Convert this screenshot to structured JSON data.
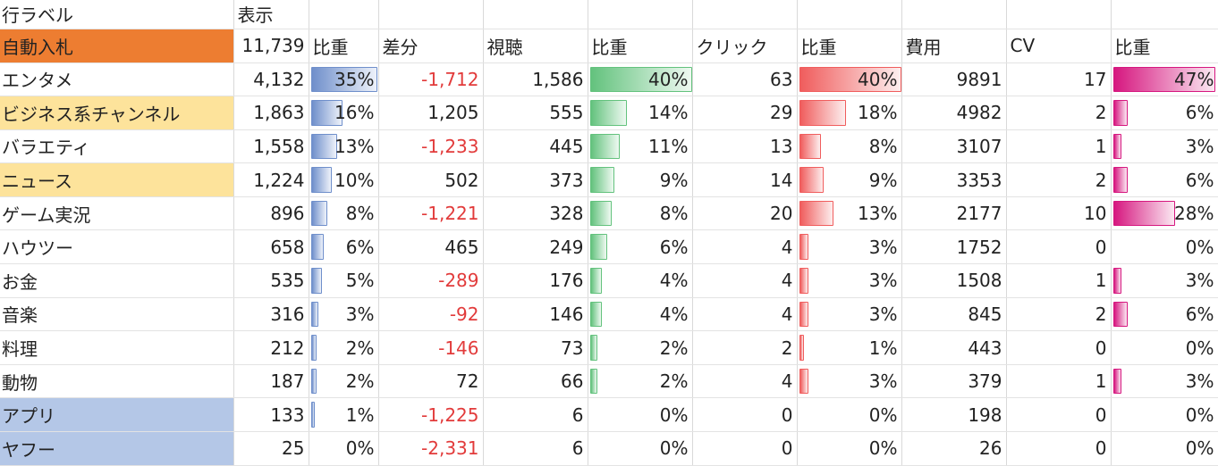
{
  "header": {
    "row_label": "行ラベル",
    "display": "表示"
  },
  "subheader": {
    "group": "自動入札",
    "total": "11,739",
    "col_ratio1": "比重",
    "col_diff": "差分",
    "col_view": "視聴",
    "col_ratio2": "比重",
    "col_click": "クリック",
    "col_ratio3": "比重",
    "col_cost": "費用",
    "col_cv": "CV",
    "col_ratio4": "比重"
  },
  "colors": {
    "group_row_bg": "#ed7d31",
    "highlight_yellow": "#fde39b",
    "highlight_blue": "#b4c7e7"
  },
  "rows": [
    {
      "label": "エンタメ",
      "hl": "",
      "v1": "4,132",
      "r1": "35%",
      "r1v": 0.35,
      "diff": "-1,712",
      "neg": true,
      "view": "1,586",
      "r2": "40%",
      "r2v": 0.4,
      "click": "63",
      "r3": "40%",
      "r3v": 0.4,
      "cost": "9891",
      "cv": "17",
      "r4": "47%",
      "r4v": 0.47
    },
    {
      "label": "ビジネス系チャンネル",
      "hl": "yellow",
      "v1": "1,863",
      "r1": "16%",
      "r1v": 0.16,
      "diff": "1,205",
      "neg": false,
      "view": "555",
      "r2": "14%",
      "r2v": 0.14,
      "click": "29",
      "r3": "18%",
      "r3v": 0.18,
      "cost": "4982",
      "cv": "2",
      "r4": "6%",
      "r4v": 0.06
    },
    {
      "label": "バラエティ",
      "hl": "",
      "v1": "1,558",
      "r1": "13%",
      "r1v": 0.13,
      "diff": "-1,233",
      "neg": true,
      "view": "445",
      "r2": "11%",
      "r2v": 0.11,
      "click": "13",
      "r3": "8%",
      "r3v": 0.08,
      "cost": "3107",
      "cv": "1",
      "r4": "3%",
      "r4v": 0.03
    },
    {
      "label": "ニュース",
      "hl": "yellow",
      "v1": "1,224",
      "r1": "10%",
      "r1v": 0.1,
      "diff": "502",
      "neg": false,
      "view": "373",
      "r2": "9%",
      "r2v": 0.09,
      "click": "14",
      "r3": "9%",
      "r3v": 0.09,
      "cost": "3353",
      "cv": "2",
      "r4": "6%",
      "r4v": 0.06
    },
    {
      "label": "ゲーム実況",
      "hl": "",
      "v1": "896",
      "r1": "8%",
      "r1v": 0.08,
      "diff": "-1,221",
      "neg": true,
      "view": "328",
      "r2": "8%",
      "r2v": 0.08,
      "click": "20",
      "r3": "13%",
      "r3v": 0.13,
      "cost": "2177",
      "cv": "10",
      "r4": "28%",
      "r4v": 0.28
    },
    {
      "label": "ハウツー",
      "hl": "",
      "v1": "658",
      "r1": "6%",
      "r1v": 0.06,
      "diff": "465",
      "neg": false,
      "view": "249",
      "r2": "6%",
      "r2v": 0.06,
      "click": "4",
      "r3": "3%",
      "r3v": 0.03,
      "cost": "1752",
      "cv": "0",
      "r4": "0%",
      "r4v": 0
    },
    {
      "label": "お金",
      "hl": "",
      "v1": "535",
      "r1": "5%",
      "r1v": 0.05,
      "diff": "-289",
      "neg": true,
      "view": "176",
      "r2": "4%",
      "r2v": 0.04,
      "click": "4",
      "r3": "3%",
      "r3v": 0.03,
      "cost": "1508",
      "cv": "1",
      "r4": "3%",
      "r4v": 0.03
    },
    {
      "label": "音楽",
      "hl": "",
      "v1": "316",
      "r1": "3%",
      "r1v": 0.03,
      "diff": "-92",
      "neg": true,
      "view": "146",
      "r2": "4%",
      "r2v": 0.04,
      "click": "4",
      "r3": "3%",
      "r3v": 0.03,
      "cost": "845",
      "cv": "2",
      "r4": "6%",
      "r4v": 0.06
    },
    {
      "label": "料理",
      "hl": "",
      "v1": "212",
      "r1": "2%",
      "r1v": 0.02,
      "diff": "-146",
      "neg": true,
      "view": "73",
      "r2": "2%",
      "r2v": 0.02,
      "click": "2",
      "r3": "1%",
      "r3v": 0.01,
      "cost": "443",
      "cv": "0",
      "r4": "0%",
      "r4v": 0
    },
    {
      "label": "動物",
      "hl": "",
      "v1": "187",
      "r1": "2%",
      "r1v": 0.02,
      "diff": "72",
      "neg": false,
      "view": "66",
      "r2": "2%",
      "r2v": 0.02,
      "click": "4",
      "r3": "3%",
      "r3v": 0.03,
      "cost": "379",
      "cv": "1",
      "r4": "3%",
      "r4v": 0.03
    },
    {
      "label": "アプリ",
      "hl": "blue",
      "v1": "133",
      "r1": "1%",
      "r1v": 0.01,
      "diff": "-1,225",
      "neg": true,
      "view": "6",
      "r2": "0%",
      "r2v": 0,
      "click": "0",
      "r3": "0%",
      "r3v": 0,
      "cost": "198",
      "cv": "0",
      "r4": "0%",
      "r4v": 0
    },
    {
      "label": "ヤフー",
      "hl": "blue",
      "v1": "25",
      "r1": "0%",
      "r1v": 0,
      "diff": "-2,331",
      "neg": true,
      "view": "6",
      "r2": "0%",
      "r2v": 0,
      "click": "0",
      "r3": "0%",
      "r3v": 0,
      "cost": "26",
      "cv": "0",
      "r4": "0%",
      "r4v": 0
    }
  ]
}
